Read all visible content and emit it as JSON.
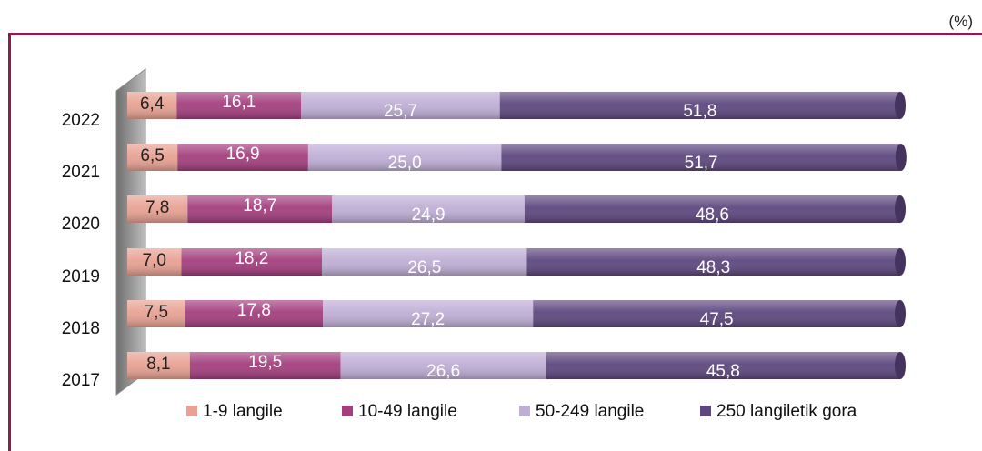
{
  "unit_label": "(%)",
  "colors": {
    "frame": "#8a1e4f",
    "s1": "#e8a193",
    "s2": "#a43e7e",
    "s3": "#bfaed6",
    "s4": "#5e477f"
  },
  "chart_data": {
    "type": "bar",
    "orientation": "horizontal",
    "stacked": true,
    "categories": [
      "2022",
      "2021",
      "2020",
      "2019",
      "2018",
      "2017"
    ],
    "series": [
      {
        "name": "1-9 langile",
        "values": [
          6.4,
          6.5,
          7.8,
          7.0,
          7.5,
          8.1
        ],
        "labels": [
          "6,4",
          "6,5",
          "7,8",
          "7,0",
          "7,5",
          "8,1"
        ]
      },
      {
        "name": "10-49 langile",
        "values": [
          16.1,
          16.9,
          18.7,
          18.2,
          17.8,
          19.5
        ],
        "labels": [
          "16,1",
          "16,9",
          "18,7",
          "18,2",
          "17,8",
          "19,5"
        ]
      },
      {
        "name": "50-249 langile",
        "values": [
          25.7,
          25.0,
          24.9,
          26.5,
          27.2,
          26.6
        ],
        "labels": [
          "25,7",
          "25,0",
          "24,9",
          "26,5",
          "27,2",
          "26,6"
        ]
      },
      {
        "name": "250 langiletik gora",
        "values": [
          51.8,
          51.7,
          48.6,
          48.3,
          47.5,
          45.8
        ],
        "labels": [
          "51,8",
          "51,7",
          "48,6",
          "48,3",
          "47,5",
          "45,8"
        ]
      }
    ],
    "xlim": [
      0,
      100
    ],
    "legend_position": "bottom",
    "grid": false
  }
}
